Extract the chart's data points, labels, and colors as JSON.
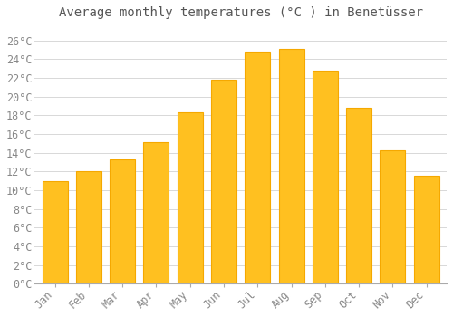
{
  "title": "Average monthly temperatures (°C ) in Benetüsser",
  "months": [
    "Jan",
    "Feb",
    "Mar",
    "Apr",
    "May",
    "Jun",
    "Jul",
    "Aug",
    "Sep",
    "Oct",
    "Nov",
    "Dec"
  ],
  "values": [
    11.0,
    12.0,
    13.3,
    15.1,
    18.3,
    21.8,
    24.8,
    25.1,
    22.8,
    18.8,
    14.2,
    11.5
  ],
  "bar_color_face": "#FFC020",
  "bar_color_edge": "#F5A800",
  "background_color": "#ffffff",
  "grid_color": "#d8d8d8",
  "yticks": [
    0,
    2,
    4,
    6,
    8,
    10,
    12,
    14,
    16,
    18,
    20,
    22,
    24,
    26
  ],
  "ylim": [
    0,
    27.5
  ],
  "title_fontsize": 10,
  "tick_fontsize": 8.5,
  "title_color": "#555555",
  "tick_color": "#888888"
}
